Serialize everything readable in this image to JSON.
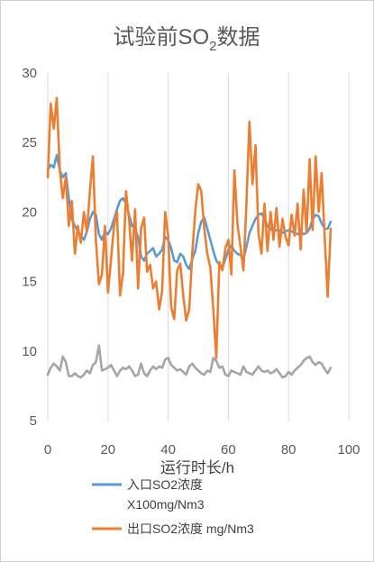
{
  "chart_data": {
    "type": "line",
    "title_main": "试验前SO",
    "title_sub": "2",
    "title_end": "数据",
    "xlabel": "运行时长/h",
    "ylabel": "",
    "xlim": [
      0,
      100
    ],
    "ylim": [
      5,
      30
    ],
    "x_ticks": [
      "0",
      "20",
      "40",
      "60",
      "80",
      "100"
    ],
    "y_ticks": [
      "5",
      "10",
      "15",
      "20",
      "25",
      "30"
    ],
    "grid": "vertical",
    "legend_placement": "bottom",
    "x": [
      0,
      1,
      2,
      3,
      4,
      5,
      6,
      7,
      8,
      9,
      10,
      11,
      12,
      13,
      14,
      15,
      16,
      17,
      18,
      19,
      20,
      21,
      22,
      23,
      24,
      25,
      26,
      27,
      28,
      29,
      30,
      31,
      32,
      33,
      34,
      35,
      36,
      37,
      38,
      39,
      40,
      41,
      42,
      43,
      44,
      45,
      46,
      47,
      48,
      49,
      50,
      51,
      52,
      53,
      54,
      55,
      56,
      57,
      58,
      59,
      60,
      61,
      62,
      63,
      64,
      65,
      66,
      67,
      68,
      69,
      70,
      71,
      72,
      73,
      74,
      75,
      76,
      77,
      78,
      79,
      80,
      81,
      82,
      83,
      84,
      85,
      86,
      87,
      88,
      89,
      90,
      91,
      92,
      93,
      94
    ],
    "series": [
      {
        "name_line1": "入口SO2浓度",
        "name_line2": "X100mg/Nm3",
        "color": "#5b9bd5",
        "values": [
          23.0,
          23.4,
          23.2,
          24.1,
          23.0,
          22.5,
          22.8,
          21.0,
          19.5,
          19.0,
          18.6,
          18.3,
          18.0,
          18.6,
          19.5,
          20.0,
          19.8,
          18.4,
          18.0,
          18.6,
          18.4,
          18.8,
          19.5,
          20.2,
          20.8,
          21.0,
          20.6,
          19.8,
          19.0,
          18.8,
          18.2,
          16.8,
          16.5,
          17.0,
          17.2,
          17.4,
          16.8,
          17.0,
          17.3,
          18.2,
          18.0,
          17.4,
          16.5,
          16.4,
          17.0,
          16.8,
          16.2,
          15.9,
          16.6,
          17.2,
          18.5,
          19.3,
          19.6,
          18.8,
          18.0,
          17.2,
          16.5,
          16.2,
          16.0,
          16.6,
          17.3,
          17.6,
          17.2,
          17.0,
          16.9,
          16.6,
          17.5,
          18.5,
          19.0,
          19.5,
          19.8,
          19.9,
          19.5,
          19.0,
          18.8,
          18.6,
          18.7,
          18.7,
          18.5,
          18.6,
          18.7,
          18.6,
          18.5,
          18.4,
          18.6,
          18.4,
          18.5,
          18.8,
          19.5,
          19.8,
          19.7,
          19.2,
          18.8,
          18.8,
          19.3
        ]
      },
      {
        "name": "出口SO2浓度 mg/Nm3",
        "color": "#ed7d31",
        "values": [
          22.5,
          27.8,
          26.0,
          28.2,
          23.0,
          21.0,
          22.5,
          19.0,
          20.8,
          17.0,
          19.0,
          17.8,
          20.0,
          18.6,
          21.5,
          24.0,
          18.0,
          14.8,
          15.5,
          19.0,
          14.2,
          16.5,
          19.0,
          20.0,
          14.0,
          15.6,
          21.5,
          19.5,
          16.5,
          20.2,
          14.5,
          18.8,
          19.6,
          15.7,
          16.2,
          14.5,
          15.0,
          13.0,
          14.3,
          20.0,
          18.3,
          13.2,
          12.3,
          15.8,
          16.3,
          14.0,
          12.2,
          13.0,
          17.0,
          20.1,
          22.0,
          21.5,
          18.8,
          17.0,
          16.0,
          13.0,
          9.5,
          16.4,
          15.8,
          17.4,
          18.0,
          15.5,
          23.0,
          19.2,
          17.5,
          15.8,
          20.5,
          26.5,
          22.0,
          24.8,
          18.5,
          17.0,
          20.6,
          17.2,
          20.0,
          18.0,
          20.3,
          17.5,
          19.5,
          18.2,
          17.6,
          19.8,
          18.3,
          20.6,
          17.3,
          21.6,
          18.5,
          23.8,
          18.7,
          24.0,
          20.0,
          22.8,
          18.2,
          13.9,
          18.8
        ]
      },
      {
        "name": "",
        "color": "#a5a5a5",
        "values": [
          8.3,
          8.8,
          9.1,
          8.9,
          8.6,
          9.6,
          9.2,
          8.2,
          8.2,
          8.4,
          8.2,
          8.1,
          8.3,
          8.6,
          8.4,
          9.0,
          9.2,
          10.4,
          8.6,
          8.7,
          8.8,
          9.0,
          8.6,
          8.2,
          8.6,
          8.8,
          8.7,
          8.9,
          8.6,
          8.2,
          8.3,
          9.1,
          8.4,
          8.2,
          8.6,
          8.9,
          8.7,
          8.9,
          8.8,
          9.4,
          9.5,
          9.0,
          8.8,
          8.6,
          8.7,
          8.5,
          8.3,
          8.9,
          9.1,
          8.8,
          8.6,
          8.4,
          8.3,
          8.6,
          8.5,
          9.5,
          9.3,
          8.8,
          8.9,
          8.3,
          8.2,
          8.6,
          8.5,
          8.4,
          8.3,
          8.9,
          8.5,
          8.4,
          8.3,
          8.6,
          8.9,
          8.6,
          8.5,
          8.6,
          8.4,
          8.5,
          8.7,
          8.4,
          8.1,
          8.2,
          8.5,
          8.3,
          8.6,
          8.8,
          9.0,
          9.3,
          9.5,
          9.6,
          9.2,
          9.0,
          9.2,
          9.1,
          8.7,
          8.4,
          8.8
        ]
      }
    ]
  }
}
